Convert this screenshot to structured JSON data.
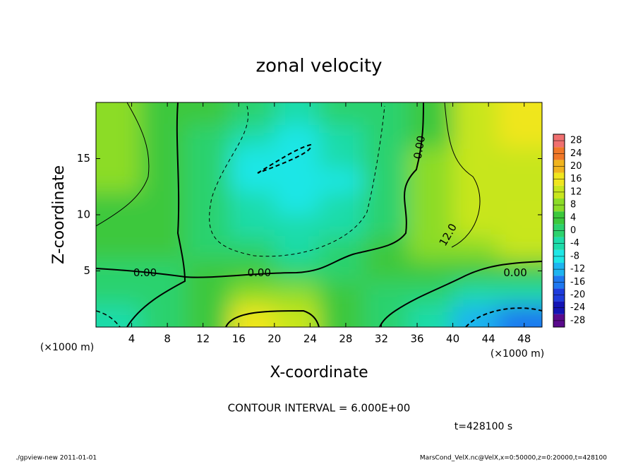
{
  "chart_data": {
    "type": "contour",
    "title": "zonal velocity",
    "x_label": "X-coordinate",
    "y_label": "Z-coordinate",
    "x_unit": "(×1000 m)",
    "y_unit": "(×1000 m)",
    "xlim": [
      0,
      50
    ],
    "xticks": [
      4,
      8,
      12,
      16,
      20,
      24,
      28,
      32,
      36,
      40,
      44,
      48
    ],
    "ylim": [
      0,
      20
    ],
    "yticks": [
      5,
      10,
      15
    ],
    "x": [
      2.5,
      7.5,
      12.5,
      17.5,
      22.5,
      27.5,
      32.5,
      37.5,
      42.5,
      47.5
    ],
    "y": [
      19,
      17,
      15,
      13,
      11,
      9,
      7,
      5,
      3,
      1
    ],
    "z": [
      [
        8,
        4,
        2,
        -2,
        -4,
        -2,
        0,
        4,
        10,
        14
      ],
      [
        8,
        4,
        0,
        -6,
        -8,
        -4,
        -2,
        4,
        12,
        14
      ],
      [
        6,
        4,
        0,
        -8,
        -10,
        -6,
        -2,
        6,
        12,
        12
      ],
      [
        6,
        4,
        -2,
        -8,
        -10,
        -8,
        -2,
        6,
        10,
        12
      ],
      [
        4,
        2,
        -2,
        -6,
        -8,
        -6,
        -2,
        6,
        10,
        12
      ],
      [
        4,
        2,
        0,
        -4,
        -6,
        -6,
        0,
        6,
        10,
        12
      ],
      [
        2,
        2,
        0,
        -2,
        -4,
        -2,
        2,
        6,
        8,
        10
      ],
      [
        0,
        0,
        2,
        2,
        0,
        0,
        2,
        4,
        4,
        4
      ],
      [
        -2,
        0,
        2,
        6,
        6,
        2,
        0,
        -2,
        -6,
        -6
      ],
      [
        -6,
        -2,
        4,
        14,
        12,
        4,
        -2,
        -6,
        -14,
        -16
      ]
    ],
    "clim": [
      -30,
      30
    ],
    "cticks": [
      -28,
      -24,
      -20,
      -16,
      -12,
      -8,
      -4,
      0,
      4,
      8,
      12,
      16,
      20,
      24,
      28
    ],
    "colors": [
      "#5a0a8c",
      "#1414b4",
      "#1e3cdc",
      "#1e78f0",
      "#1eb4f0",
      "#1ee6e6",
      "#1edcaa",
      "#2cd26e",
      "#3cc83c",
      "#8cdc28",
      "#c8e61e",
      "#f0e61e",
      "#f0b41e",
      "#f07828",
      "#f07070"
    ],
    "contour_labels": [
      "0.00",
      "0.00",
      "0.00",
      "0.00",
      "12.0"
    ],
    "contour_interval": "CONTOUR INTERVAL = 6.000E+00",
    "time_label": "t=428100 s",
    "footer_left": "./gpview-new   2011-01-01",
    "footer_right": "MarsCond_VelX.nc@VelX,x=0:50000,z=0:20000,t=428100"
  }
}
